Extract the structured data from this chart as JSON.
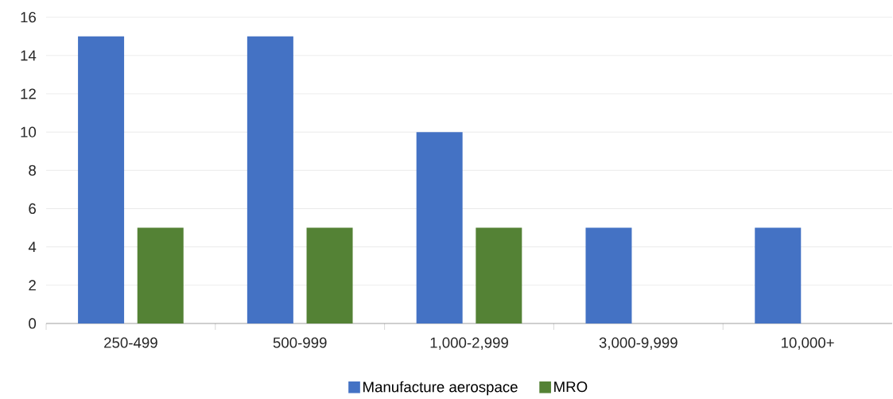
{
  "chart_data": {
    "type": "bar",
    "categories": [
      "250-499",
      "500-999",
      "1,000-2,999",
      "3,000-9,999",
      "10,000+"
    ],
    "series": [
      {
        "name": "Manufacture aerospace",
        "color": "#4472c4",
        "values": [
          15,
          15,
          10,
          5,
          5
        ]
      },
      {
        "name": "MRO",
        "color": "#548235",
        "values": [
          5,
          5,
          5,
          null,
          null
        ]
      }
    ],
    "ylim": [
      0,
      16
    ],
    "yticks": [
      0,
      2,
      4,
      6,
      8,
      10,
      12,
      14,
      16
    ],
    "grid": "y",
    "legend": "bottom"
  }
}
